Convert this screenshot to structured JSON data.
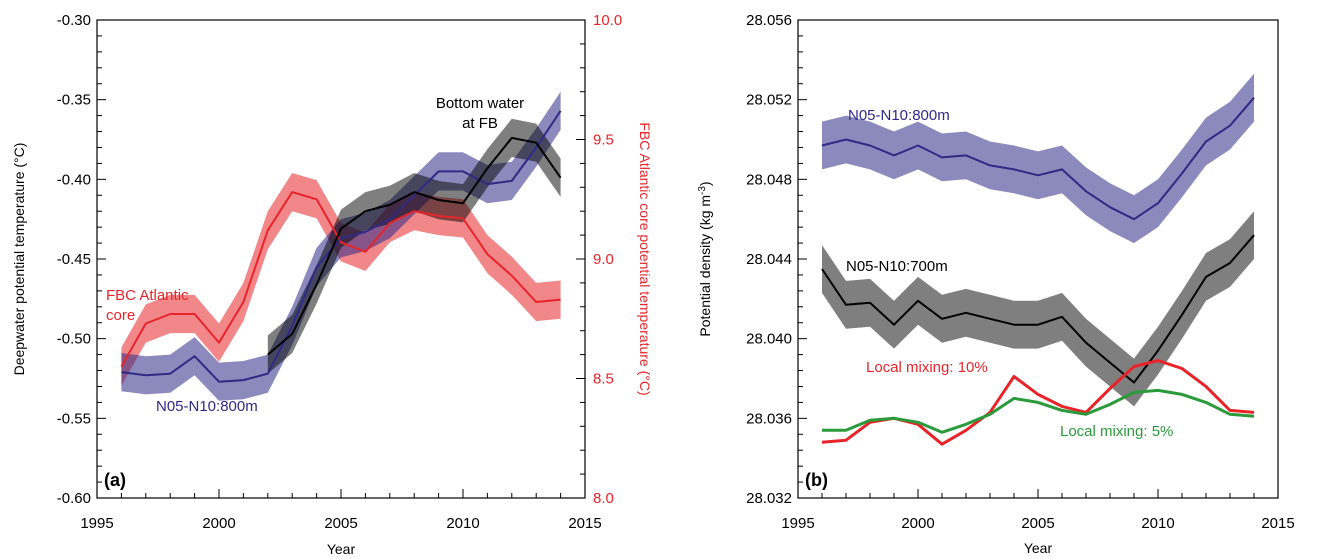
{
  "chart_data": [
    {
      "type": "line",
      "panel_label": "(a)",
      "xlabel": "Year",
      "ylabel": "Deepwater potential temperature (°C)",
      "y2label": "FBC Atlantic core potential temperature (°C)",
      "xlim": [
        1995,
        2015
      ],
      "ylim": [
        -0.6,
        -0.3
      ],
      "y2lim": [
        8.0,
        10.0
      ],
      "x_ticks": [
        "1995",
        "2000",
        "2005",
        "2010",
        "2015"
      ],
      "y_ticks": [
        "-0.30",
        "-0.35",
        "-0.40",
        "-0.45",
        "-0.50",
        "-0.55",
        "-0.60"
      ],
      "y2_ticks": [
        "10.0",
        "9.5",
        "9.0",
        "8.5",
        "8.0"
      ],
      "series": [
        {
          "name": "FBC Atlantic core",
          "axis": "right",
          "color": "#e8242a",
          "x": [
            1996,
            1997,
            1998,
            1999,
            2000,
            2001,
            2002,
            2003,
            2004,
            2005,
            2006,
            2007,
            2008,
            2009,
            2010,
            2011,
            2012,
            2013,
            2014
          ],
          "values": [
            8.55,
            8.73,
            8.77,
            8.77,
            8.65,
            8.82,
            9.12,
            9.28,
            9.25,
            9.07,
            9.03,
            9.15,
            9.2,
            9.18,
            9.17,
            9.02,
            8.93,
            8.82,
            8.83
          ],
          "band": 0.08
        },
        {
          "name": "N05-N10:800m",
          "axis": "left",
          "color": "#2e2a86",
          "x": [
            1996,
            1997,
            1998,
            1999,
            2000,
            2001,
            2002,
            2003,
            2004,
            2005,
            2006,
            2007,
            2008,
            2009,
            2010,
            2011,
            2012,
            2013,
            2014
          ],
          "values": [
            -0.521,
            -0.523,
            -0.522,
            -0.511,
            -0.527,
            -0.526,
            -0.522,
            -0.492,
            -0.455,
            -0.437,
            -0.433,
            -0.425,
            -0.41,
            -0.395,
            -0.395,
            -0.403,
            -0.401,
            -0.38,
            -0.357
          ],
          "band": 0.012
        },
        {
          "name": "Bottom water at FB",
          "axis": "left",
          "color": "#000000",
          "x": [
            2002,
            2003,
            2004,
            2005,
            2006,
            2007,
            2008,
            2009,
            2010,
            2011,
            2012,
            2013,
            2014
          ],
          "values": [
            -0.51,
            -0.497,
            -0.466,
            -0.431,
            -0.42,
            -0.416,
            -0.408,
            -0.413,
            -0.415,
            -0.393,
            -0.374,
            -0.377,
            -0.399
          ],
          "band": 0.012
        }
      ],
      "annotations": [
        {
          "text": "FBC Atlantic",
          "color": "#e8242a"
        },
        {
          "text": "core",
          "color": "#e8242a"
        },
        {
          "text": "Bottom water",
          "color": "#000000"
        },
        {
          "text": "at FB",
          "color": "#000000"
        },
        {
          "text": "N05-N10:800m",
          "color": "#2e2a86"
        }
      ]
    },
    {
      "type": "line",
      "panel_label": "(b)",
      "xlabel": "Year",
      "ylabel": "Potential density (kg m",
      "ylabel_sup": "-3",
      "ylabel_end": ")",
      "xlim": [
        1995,
        2015
      ],
      "ylim": [
        28.032,
        28.056
      ],
      "x_ticks": [
        "1995",
        "2000",
        "2005",
        "2010",
        "2015"
      ],
      "y_ticks": [
        "28.056",
        "28.052",
        "28.048",
        "28.044",
        "28.040",
        "28.036",
        "28.032"
      ],
      "series": [
        {
          "name": "N05-N10:800m",
          "color": "#2e2a86",
          "x": [
            1996,
            1997,
            1998,
            1999,
            2000,
            2001,
            2002,
            2003,
            2004,
            2005,
            2006,
            2007,
            2008,
            2009,
            2010,
            2011,
            2012,
            2013,
            2014
          ],
          "values": [
            28.0497,
            28.05,
            28.0497,
            28.0492,
            28.0497,
            28.0491,
            28.0492,
            28.0487,
            28.0485,
            28.0482,
            28.0485,
            28.0474,
            28.0466,
            28.046,
            28.0468,
            28.0483,
            28.0499,
            28.0507,
            28.0521
          ],
          "band": 0.0012
        },
        {
          "name": "N05-N10:700m",
          "color": "#000000",
          "x": [
            1996,
            1997,
            1998,
            1999,
            2000,
            2001,
            2002,
            2003,
            2004,
            2005,
            2006,
            2007,
            2008,
            2009,
            2010,
            2011,
            2012,
            2013,
            2014
          ],
          "values": [
            28.0435,
            28.0417,
            28.0418,
            28.0407,
            28.0419,
            28.041,
            28.0413,
            28.041,
            28.0407,
            28.0407,
            28.0411,
            28.0398,
            28.0388,
            28.0378,
            28.0394,
            28.0412,
            28.0431,
            28.0438,
            28.0452
          ],
          "band": 0.0012
        },
        {
          "name": "Local mixing: 10%",
          "color": "#e8242a",
          "x": [
            1996,
            1997,
            1998,
            1999,
            2000,
            2001,
            2002,
            2003,
            2004,
            2005,
            2006,
            2007,
            2008,
            2009,
            2010,
            2011,
            2012,
            2013,
            2014
          ],
          "values": [
            28.0348,
            28.0349,
            28.0358,
            28.036,
            28.0357,
            28.0347,
            28.0354,
            28.0363,
            28.0381,
            28.0372,
            28.0366,
            28.0363,
            28.0375,
            28.0386,
            28.0389,
            28.0385,
            28.0376,
            28.0364,
            28.0363
          ]
        },
        {
          "name": "Local mixing: 5%",
          "color": "#2a9a3a",
          "x": [
            1996,
            1997,
            1998,
            1999,
            2000,
            2001,
            2002,
            2003,
            2004,
            2005,
            2006,
            2007,
            2008,
            2009,
            2010,
            2011,
            2012,
            2013,
            2014
          ],
          "values": [
            28.0354,
            28.0354,
            28.0359,
            28.036,
            28.0358,
            28.0353,
            28.0357,
            28.0362,
            28.037,
            28.0368,
            28.0364,
            28.0362,
            28.0367,
            28.0373,
            28.0374,
            28.0372,
            28.0368,
            28.0362,
            28.0361
          ]
        }
      ],
      "annotations": [
        {
          "text": "N05-N10:800m",
          "color": "#2e2a86"
        },
        {
          "text": "N05-N10:700m",
          "color": "#000000"
        },
        {
          "text": "Local mixing: 10%",
          "color": "#e8242a"
        },
        {
          "text": "Local mixing: 5%",
          "color": "#2a9a3a"
        }
      ]
    }
  ]
}
